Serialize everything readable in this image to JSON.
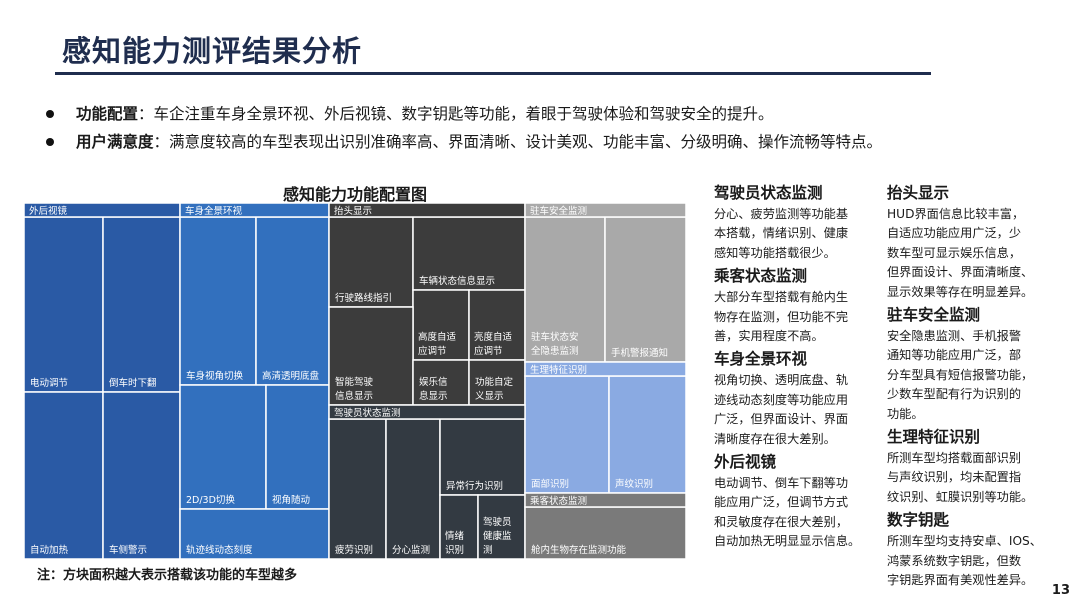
{
  "title": "感知能力测评结果分析",
  "bullets": [
    {
      "term": "功能配置",
      "text": "：车企注重车身全景环视、外后视镜、数字钥匙等功能，着眼于驾驶体验和驾驶安全的提升。"
    },
    {
      "term": "用户满意度",
      "text": "：满意度较高的车型表现出识别准确率高、界面清晰、设计美观、功能丰富、分级明确、操作流畅等特点。"
    }
  ],
  "chart_data": {
    "type": "treemap",
    "title": "感知能力功能配置图",
    "groups": [
      {
        "name": "外后视镜",
        "color": "#2a5aa5",
        "items": [
          {
            "label": "电动调节",
            "value": 13
          },
          {
            "label": "倒车时下翻",
            "value": 9
          },
          {
            "label": "自动加热",
            "value": 12
          },
          {
            "label": "车侧警示",
            "value": 9
          }
        ]
      },
      {
        "name": "车身全景环视",
        "color": "#3270be",
        "items": [
          {
            "label": "车身视角切换",
            "value": 15
          },
          {
            "label": "高清透明底盘",
            "value": 14
          },
          {
            "label": "2D/3D切换",
            "value": 16
          },
          {
            "label": "视角随动",
            "value": 12
          },
          {
            "label": "轨迹线动态刻度",
            "value": 11
          }
        ]
      },
      {
        "name": "抬头显示",
        "color": "#3c3c3c",
        "items": [
          {
            "label": "行驶路线指引",
            "value": 7
          },
          {
            "label": "车辆状态信息显示",
            "value": 6
          },
          {
            "label": "高度自适应调节",
            "value": 4
          },
          {
            "label": "亮度自适应调节",
            "value": 4
          },
          {
            "label": "智能驾驶信息显示",
            "value": 6
          },
          {
            "label": "娱乐信息显示",
            "value": 4
          },
          {
            "label": "功能自定义显示",
            "value": 4
          }
        ]
      },
      {
        "name": "驾驶员状态监测",
        "color": "#333a42",
        "items": [
          {
            "label": "疲劳识别",
            "value": 6
          },
          {
            "label": "分心监测",
            "value": 6
          },
          {
            "label": "异常行为识别",
            "value": 6
          },
          {
            "label": "情绪识别",
            "value": 2
          },
          {
            "label": "驾驶员健康监测",
            "value": 3
          }
        ]
      },
      {
        "name": "驻车安全监测",
        "color": "#a9a9a9",
        "items": [
          {
            "label": "驻车状态安全隐患监测",
            "value": 6
          },
          {
            "label": "手机警报通知",
            "value": 6
          }
        ]
      },
      {
        "name": "生理特征识别",
        "color": "#8aaae2",
        "items": [
          {
            "label": "面部识别",
            "value": 6
          },
          {
            "label": "声纹识别",
            "value": 5
          }
        ]
      },
      {
        "name": "乘客状态监测",
        "color": "#7a7a7a",
        "items": [
          {
            "label": "舱内生物存在监测功能",
            "value": 5
          }
        ]
      }
    ]
  },
  "note": "注：方块面积越大表示搭载该功能的车型越多",
  "sections_left": [
    {
      "heading": "驾驶员状态监测",
      "lines": [
        "分心、疲劳监测等功能基",
        "本搭载，情绪识别、健康",
        "感知等功能搭载很少。"
      ]
    },
    {
      "heading": "乘客状态监测",
      "lines": [
        "大部分车型搭载有舱内生",
        "物存在监测，但功能不完",
        "善，实用程度不高。"
      ]
    },
    {
      "heading": "车身全景环视",
      "lines": [
        "视角切换、透明底盘、轨",
        "迹线动态刻度等功能应用",
        "广泛，但界面设计、界面",
        "清晰度存在很大差别。"
      ]
    },
    {
      "heading": "外后视镜",
      "lines": [
        "电动调节、倒车下翻等功",
        "能应用广泛，但调节方式",
        "和灵敏度存在很大差别，",
        "自动加热无明显显示信息。"
      ]
    }
  ],
  "sections_right": [
    {
      "heading": "抬头显示",
      "lines": [
        "HUD界面信息比较丰富，",
        "自适应功能应用广泛，少",
        "数车型可显示娱乐信息，",
        "但界面设计、界面清晰度、",
        "显示效果等存在明显差异。"
      ]
    },
    {
      "heading": "驻车安全监测",
      "lines": [
        "安全隐患监测、手机报警",
        "通知等功能应用广泛，部",
        "分车型具有短信报警功能，",
        "少数车型配有行为识别的",
        "功能。"
      ]
    },
    {
      "heading": "生理特征识别",
      "lines": [
        "所测车型均搭载面部识别",
        "与声纹识别，均未配置指",
        "纹识别、虹膜识别等功能。"
      ]
    },
    {
      "heading": "数字钥匙",
      "lines": [
        "所测车型均支持安卓、IOS、",
        "鸿蒙系统数字钥匙，但数",
        "字钥匙界面有美观性差异。"
      ]
    }
  ],
  "page_number": "13"
}
